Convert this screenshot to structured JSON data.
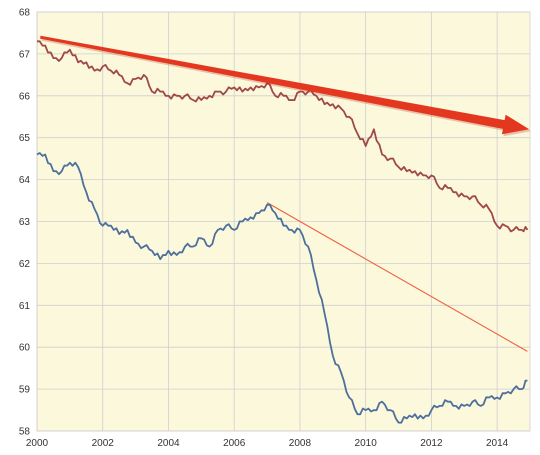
{
  "chart_data": {
    "type": "line",
    "title": "",
    "xlabel": "",
    "ylabel": "",
    "xlim": [
      2000,
      2015
    ],
    "ylim": [
      58,
      68
    ],
    "grid": true,
    "xticks": [
      "2000",
      "2002",
      "2004",
      "2006",
      "2008",
      "2010",
      "2012",
      "2014"
    ],
    "yticks": [
      "58",
      "59",
      "60",
      "61",
      "62",
      "63",
      "64",
      "65",
      "66",
      "67",
      "68"
    ],
    "colors": {
      "background": "#fbf8dc",
      "grid": "#cfcfcf",
      "upper_series": "#a04848",
      "lower_series": "#4d6f9c",
      "thin_trend": "#f06040",
      "thick_trend_arrow": "#e4371f"
    },
    "series": [
      {
        "x": [
          2000.0,
          2000.25,
          2000.5,
          2000.75,
          2001.0,
          2001.25,
          2001.5,
          2001.75,
          2002.0,
          2002.25,
          2002.5,
          2002.75,
          2003.0,
          2003.25,
          2003.5,
          2003.75,
          2004.0,
          2004.25,
          2004.5,
          2004.75,
          2005.0,
          2005.25,
          2005.5,
          2005.75,
          2006.0,
          2006.25,
          2006.5,
          2006.75,
          2007.0,
          2007.25,
          2007.5,
          2007.75,
          2008.0,
          2008.25,
          2008.5,
          2008.75,
          2009.0,
          2009.25,
          2009.5,
          2009.75,
          2010.0,
          2010.25,
          2010.5,
          2010.75,
          2011.0,
          2011.25,
          2011.5,
          2011.75,
          2012.0,
          2012.25,
          2012.5,
          2012.75,
          2013.0,
          2013.25,
          2013.5,
          2013.75,
          2014.0,
          2014.25,
          2014.5,
          2014.75,
          2014.92
        ],
        "values": [
          67.3,
          67.2,
          66.9,
          66.9,
          67.1,
          66.8,
          66.8,
          66.6,
          66.7,
          66.6,
          66.5,
          66.3,
          66.4,
          66.5,
          66.1,
          66.1,
          66.0,
          66.0,
          66.0,
          65.9,
          65.9,
          66.0,
          66.1,
          66.1,
          66.2,
          66.1,
          66.2,
          66.2,
          66.3,
          66.0,
          66.0,
          65.9,
          66.1,
          66.1,
          66.0,
          65.8,
          65.8,
          65.7,
          65.5,
          65.1,
          64.8,
          65.2,
          64.6,
          64.5,
          64.3,
          64.2,
          64.2,
          64.1,
          64.1,
          63.8,
          63.8,
          63.7,
          63.6,
          63.6,
          63.4,
          63.3,
          62.9,
          62.9,
          62.8,
          62.8,
          62.8
        ]
      },
      {
        "x": [
          2000.0,
          2000.25,
          2000.5,
          2000.75,
          2001.0,
          2001.25,
          2001.5,
          2001.75,
          2002.0,
          2002.25,
          2002.5,
          2002.75,
          2003.0,
          2003.25,
          2003.5,
          2003.75,
          2004.0,
          2004.25,
          2004.5,
          2004.75,
          2005.0,
          2005.25,
          2005.5,
          2005.75,
          2006.0,
          2006.25,
          2006.5,
          2006.75,
          2007.0,
          2007.25,
          2007.5,
          2007.75,
          2008.0,
          2008.25,
          2008.5,
          2008.75,
          2009.0,
          2009.25,
          2009.5,
          2009.75,
          2010.0,
          2010.25,
          2010.5,
          2010.75,
          2011.0,
          2011.25,
          2011.5,
          2011.75,
          2012.0,
          2012.25,
          2012.5,
          2012.75,
          2013.0,
          2013.25,
          2013.5,
          2013.75,
          2014.0,
          2014.25,
          2014.5,
          2014.75,
          2014.92
        ],
        "values": [
          64.6,
          64.6,
          64.2,
          64.2,
          64.4,
          64.3,
          63.7,
          63.3,
          62.9,
          62.9,
          62.7,
          62.8,
          62.5,
          62.4,
          62.3,
          62.1,
          62.3,
          62.2,
          62.4,
          62.4,
          62.6,
          62.4,
          62.8,
          62.9,
          62.8,
          63.0,
          63.1,
          63.2,
          63.4,
          63.2,
          62.9,
          62.8,
          62.8,
          62.4,
          61.6,
          60.8,
          59.8,
          59.4,
          58.8,
          58.4,
          58.5,
          58.5,
          58.7,
          58.5,
          58.2,
          58.3,
          58.4,
          58.3,
          58.5,
          58.6,
          58.7,
          58.6,
          58.6,
          58.7,
          58.6,
          58.8,
          58.8,
          58.9,
          59.0,
          59.0,
          59.2
        ]
      }
    ],
    "trendlines": [
      {
        "style": "thin",
        "x": [
          2007.0,
          2014.92
        ],
        "values": [
          63.45,
          59.9
        ]
      },
      {
        "style": "thick-arrow",
        "x": [
          2000.1,
          2014.98
        ],
        "values": [
          67.4,
          65.2
        ]
      }
    ]
  }
}
